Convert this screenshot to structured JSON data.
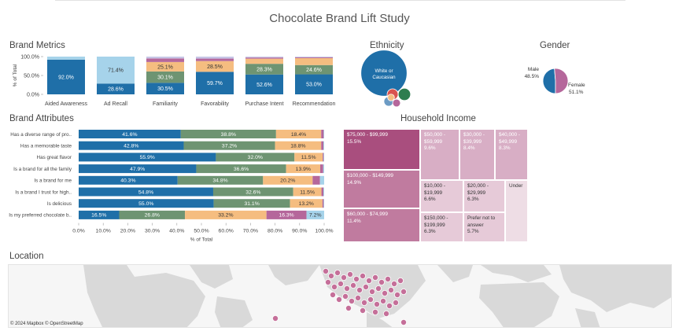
{
  "page": {
    "title": "Chocolate Brand Lift Study"
  },
  "sections": {
    "brand_metrics": "Brand Metrics",
    "ethnicity": "Ethnicity",
    "gender": "Gender",
    "brand_attributes": "Brand Attributes",
    "household_income": "Household Income",
    "location": "Location"
  },
  "colors": {
    "blue": "#1f6fa8",
    "light_blue": "#a6d3ea",
    "green": "#6e9472",
    "orange": "#f5bd80",
    "pink": "#b5679b",
    "light_purple": "#c6c6e6",
    "treemap_dark": "#a94e7e",
    "treemap_mid": "#c07b9f",
    "treemap_light": "#d8aec5",
    "treemap_pale": "#e6cad8",
    "treemap_faint": "#eedde5",
    "map_land": "#d9d9d9",
    "map_water": "#f6f6f6",
    "map_marker": "#c56f99"
  },
  "chart_data": [
    {
      "id": "brand_metrics",
      "type": "bar",
      "stacked": true,
      "title": "Brand Metrics",
      "ylabel": "% of Total",
      "ylim": [
        0,
        100
      ],
      "y_ticks": [
        "100.0%",
        "50.0%",
        "0.0%"
      ],
      "categories": [
        "Aided Awareness",
        "Ad Recall",
        "Familiarity",
        "Favorability",
        "Purchase Intent",
        "Recommendation"
      ],
      "series": [
        {
          "color": "#1f6fa8",
          "values": [
            92.0,
            28.6,
            30.5,
            59.7,
            52.6,
            53.0
          ],
          "labels": [
            "92.0%",
            "28.6%",
            "30.5%",
            "59.7%",
            "52.6%",
            "53.0%"
          ]
        },
        {
          "color": "#a6d3ea",
          "values": [
            8.0,
            71.4,
            0,
            0,
            0,
            0
          ],
          "labels": [
            "",
            "71.4%",
            "",
            "",
            "",
            ""
          ]
        },
        {
          "color": "#6e9472",
          "values": [
            0,
            0,
            30.1,
            0,
            28.3,
            24.6
          ],
          "labels": [
            "",
            "",
            "30.1%",
            "",
            "28.3%",
            "24.6%"
          ]
        },
        {
          "color": "#f5bd80",
          "values": [
            0,
            0,
            25.1,
            28.5,
            13.6,
            18.4
          ],
          "labels": [
            "",
            "",
            "25.1%",
            "28.5%",
            "",
            ""
          ]
        },
        {
          "color": "#b5679b",
          "values": [
            0,
            0,
            9.5,
            6.5,
            3.0,
            2.0
          ],
          "labels": [
            "",
            "",
            "",
            "",
            "",
            ""
          ]
        },
        {
          "color": "#c6c6e6",
          "values": [
            0,
            0,
            4.8,
            5.3,
            2.5,
            2.0
          ],
          "labels": [
            "",
            "",
            "",
            "",
            "",
            ""
          ]
        }
      ]
    },
    {
      "id": "ethnicity",
      "type": "scatter",
      "title": "Ethnicity",
      "series": [
        {
          "name": "White or Caucasian",
          "color": "#1f6fa8",
          "values": [
            70
          ]
        },
        {
          "color": "#2e7d4f",
          "values": [
            5
          ]
        },
        {
          "color": "#d9534f",
          "values": [
            4
          ]
        },
        {
          "color": "#6c9bc4",
          "values": [
            3
          ]
        },
        {
          "color": "#b5679b",
          "values": [
            2
          ]
        },
        {
          "color": "#f5bd80",
          "values": [
            1.5
          ]
        }
      ]
    },
    {
      "id": "gender",
      "type": "pie",
      "title": "Gender",
      "categories": [
        "Male",
        "Female"
      ],
      "values": [
        48.5,
        51.1
      ],
      "labels": [
        "48.5%",
        "51.1%"
      ],
      "colors": [
        "#1f6fa8",
        "#b5679b"
      ]
    },
    {
      "id": "brand_attributes",
      "type": "bar",
      "orientation": "horizontal",
      "stacked": true,
      "title": "Brand Attributes",
      "xlabel": "% of Total",
      "xlim": [
        0,
        100
      ],
      "x_ticks": [
        "0.0%",
        "10.0%",
        "20.0%",
        "30.0%",
        "40.0%",
        "50.0%",
        "60.0%",
        "70.0%",
        "80.0%",
        "90.0%",
        "100.0%"
      ],
      "categories": [
        "Has a diverse range of pro..",
        "Has a memorable taste",
        "Has great flavor",
        "Is a brand for all the family",
        "Is a brand for me",
        "Is a brand I trust for high..",
        "Is delicious",
        "Is my preferred chocolate b.."
      ],
      "series": [
        {
          "color": "#1f6fa8",
          "values": [
            41.6,
            42.8,
            55.9,
            47.9,
            40.3,
            54.8,
            55.0,
            16.5
          ],
          "labels": [
            "41.6%",
            "42.8%",
            "55.9%",
            "47.9%",
            "40.3%",
            "54.8%",
            "55.0%",
            "16.5%"
          ]
        },
        {
          "color": "#6e9472",
          "values": [
            38.8,
            37.2,
            32.0,
            36.6,
            34.8,
            32.6,
            31.1,
            26.8
          ],
          "labels": [
            "38.8%",
            "37.2%",
            "32.0%",
            "36.6%",
            "34.8%",
            "32.6%",
            "31.1%",
            "26.8%"
          ]
        },
        {
          "color": "#f5bd80",
          "values": [
            18.4,
            18.8,
            11.5,
            13.9,
            20.2,
            11.5,
            13.2,
            33.2
          ],
          "labels": [
            "18.4%",
            "18.8%",
            "11.5%",
            "13.9%",
            "20.2%",
            "11.5%",
            "13.2%",
            "33.2%"
          ]
        },
        {
          "color": "#b5679b",
          "values": [
            1.0,
            0.9,
            0.4,
            1.2,
            3.0,
            0.8,
            0.5,
            16.3
          ],
          "labels": [
            "",
            "",
            "",
            "",
            "",
            "",
            "",
            "16.3%"
          ]
        },
        {
          "color": "#a6d3ea",
          "values": [
            0.2,
            0.3,
            0.2,
            0.4,
            1.7,
            0.3,
            0.2,
            7.2
          ],
          "labels": [
            "",
            "",
            "",
            "",
            "",
            "",
            "",
            "7.2%"
          ]
        }
      ]
    },
    {
      "id": "household_income",
      "type": "treemap",
      "title": "Household Income",
      "categories": [
        "$75,000 - $99,999",
        "$100,000 - $149,999",
        "$60,000 - $74,999",
        "$50,000 - $59,999",
        "$30,000 - $39,999",
        "$40,000 - $49,999",
        "$10,000 - $19,999",
        "$20,000 - $29,999",
        "$150,000 - $199,999",
        "Prefer not to answer",
        "Under"
      ],
      "values": [
        15.5,
        14.9,
        11.4,
        9.6,
        8.4,
        8.3,
        6.6,
        6.3,
        6.3,
        5.7,
        4.0
      ],
      "labels": [
        "15.5%",
        "14.9%",
        "11.4%",
        "9.6%",
        "8.4%",
        "8.3%",
        "6.6%",
        "6.3%",
        "6.3%",
        "5.7%",
        ""
      ]
    }
  ],
  "map": {
    "title": "Location",
    "credit": "© 2024 Mapbox  © OpenStreetMap"
  }
}
